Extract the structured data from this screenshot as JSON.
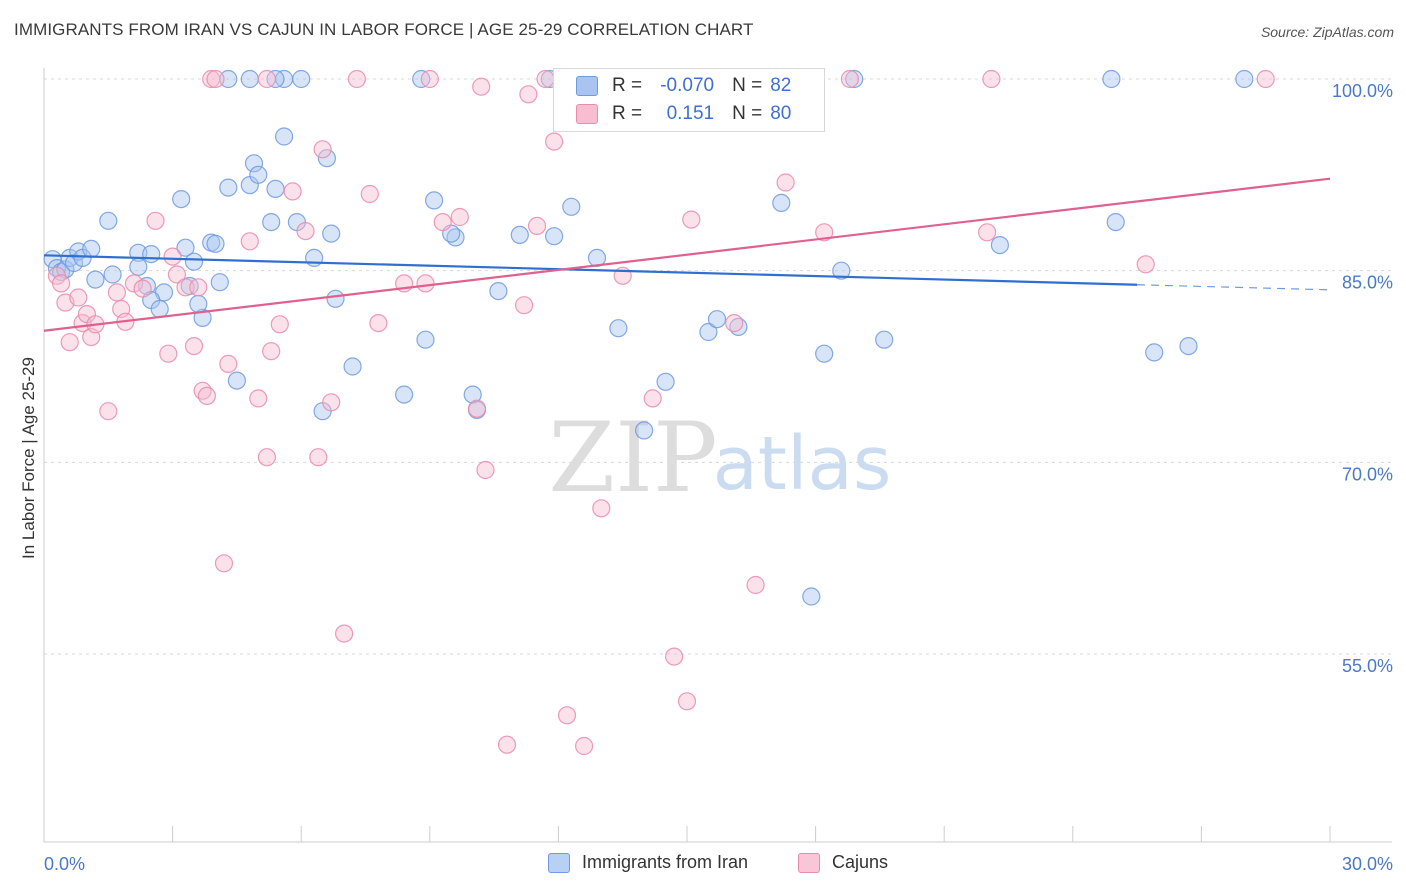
{
  "title": "IMMIGRANTS FROM IRAN VS CAJUN IN LABOR FORCE | AGE 25-29 CORRELATION CHART",
  "source": "Source: ZipAtlas.com",
  "watermark": {
    "zip": "ZIP",
    "atlas": "atlas"
  },
  "legend": {
    "r_label": "R =",
    "n_label": "N =",
    "rows": [
      {
        "r": "-0.070",
        "n": "82",
        "color": "#a9c5ef",
        "border": "#6e9ae0"
      },
      {
        "r": "0.151",
        "n": "80",
        "color": "#f7bdd0",
        "border": "#e98bab"
      }
    ]
  },
  "bottom_legend": [
    {
      "label": "Immigrants from Iran",
      "color": "#b7d0f3",
      "border": "#6e9ae0"
    },
    {
      "label": "Cajuns",
      "color": "#f8c6d6",
      "border": "#e98bab"
    }
  ],
  "chart_data": {
    "type": "scatter",
    "title": "IMMIGRANTS FROM IRAN VS CAJUN IN LABOR FORCE | AGE 25-29 CORRELATION CHART",
    "xlabel": "",
    "ylabel": "In Labor Force | Age 25-29",
    "xlim": [
      0,
      30
    ],
    "ylim": [
      41,
      102
    ],
    "x_ticks": [
      "0.0%",
      "30.0%"
    ],
    "y_ticks": [
      {
        "value": 100,
        "label": "100.0%"
      },
      {
        "value": 85,
        "label": "85.0%"
      },
      {
        "value": 70,
        "label": "70.0%"
      },
      {
        "value": 55,
        "label": "55.0%"
      }
    ],
    "grid": "horizontal dashed",
    "series": [
      {
        "name": "Immigrants from Iran",
        "color": "#6e9ae0",
        "fill": "#a9c5ef",
        "trend": {
          "x0": 0,
          "y0": 86.2,
          "x1": 25.5,
          "y1": 83.9,
          "dashed_to_x": 30,
          "dashed_to_y": 83.5,
          "color": "#2f6fd0"
        },
        "points": [
          [
            0.2,
            85.9
          ],
          [
            0.3,
            85.2
          ],
          [
            0.4,
            84.9
          ],
          [
            0.5,
            85.1
          ],
          [
            0.6,
            86.0
          ],
          [
            0.7,
            85.6
          ],
          [
            0.8,
            86.5
          ],
          [
            0.9,
            86.0
          ],
          [
            1.1,
            86.7
          ],
          [
            1.2,
            84.3
          ],
          [
            1.5,
            88.9
          ],
          [
            1.6,
            84.7
          ],
          [
            2.2,
            86.4
          ],
          [
            2.2,
            85.3
          ],
          [
            2.4,
            83.8
          ],
          [
            2.5,
            86.3
          ],
          [
            2.8,
            83.3
          ],
          [
            2.5,
            82.7
          ],
          [
            3.2,
            90.6
          ],
          [
            2.7,
            82.0
          ],
          [
            3.3,
            86.8
          ],
          [
            3.5,
            85.7
          ],
          [
            3.7,
            81.3
          ],
          [
            3.6,
            82.4
          ],
          [
            3.9,
            87.2
          ],
          [
            3.4,
            83.8
          ],
          [
            4.0,
            87.1
          ],
          [
            4.1,
            84.1
          ],
          [
            4.3,
            91.5
          ],
          [
            4.5,
            76.4
          ],
          [
            4.8,
            91.7
          ],
          [
            4.9,
            93.4
          ],
          [
            5.0,
            92.5
          ],
          [
            5.3,
            88.8
          ],
          [
            5.4,
            91.4
          ],
          [
            5.6,
            95.5
          ],
          [
            5.9,
            88.8
          ],
          [
            6.3,
            86.0
          ],
          [
            6.5,
            74.0
          ],
          [
            6.6,
            93.8
          ],
          [
            6.7,
            87.9
          ],
          [
            6.8,
            82.8
          ],
          [
            7.2,
            77.5
          ],
          [
            8.4,
            75.3
          ],
          [
            8.9,
            79.6
          ],
          [
            9.1,
            90.5
          ],
          [
            9.6,
            87.6
          ],
          [
            9.5,
            87.9
          ],
          [
            10.0,
            75.3
          ],
          [
            10.1,
            74.1
          ],
          [
            10.6,
            83.4
          ],
          [
            11.1,
            87.8
          ],
          [
            11.9,
            87.7
          ],
          [
            12.3,
            90.0
          ],
          [
            12.9,
            86.0
          ],
          [
            13.4,
            80.5
          ],
          [
            14.0,
            72.5
          ],
          [
            14.5,
            76.3
          ],
          [
            15.5,
            80.2
          ],
          [
            15.7,
            81.2
          ],
          [
            16.2,
            80.6
          ],
          [
            17.2,
            90.3
          ],
          [
            17.9,
            59.5
          ],
          [
            18.2,
            78.5
          ],
          [
            18.6,
            85.0
          ],
          [
            19.6,
            79.6
          ],
          [
            22.3,
            87.0
          ],
          [
            25.0,
            88.8
          ],
          [
            25.9,
            78.6
          ],
          [
            26.7,
            79.1
          ],
          [
            4.3,
            100.0
          ],
          [
            4.8,
            100.0
          ],
          [
            5.6,
            100.0
          ],
          [
            6.0,
            100.0
          ],
          [
            5.4,
            100.0
          ],
          [
            8.8,
            100.0
          ],
          [
            11.8,
            100.0
          ],
          [
            14.5,
            100.0
          ],
          [
            17.8,
            100.0
          ],
          [
            18.9,
            100.0
          ],
          [
            24.9,
            100.0
          ],
          [
            28.0,
            100.0
          ]
        ]
      },
      {
        "name": "Cajuns",
        "color": "#e98bab",
        "fill": "#f7bdd0",
        "trend": {
          "x0": 0,
          "y0": 80.3,
          "x1": 30,
          "y1": 92.2,
          "color": "#e0608e"
        },
        "points": [
          [
            0.3,
            84.6
          ],
          [
            0.4,
            84.0
          ],
          [
            0.5,
            82.5
          ],
          [
            0.6,
            79.4
          ],
          [
            0.8,
            82.9
          ],
          [
            0.9,
            80.9
          ],
          [
            1.0,
            81.6
          ],
          [
            1.1,
            79.8
          ],
          [
            1.2,
            80.8
          ],
          [
            1.5,
            74.0
          ],
          [
            1.7,
            83.3
          ],
          [
            1.8,
            82.0
          ],
          [
            1.9,
            81.0
          ],
          [
            2.1,
            84.0
          ],
          [
            2.3,
            83.6
          ],
          [
            2.6,
            88.9
          ],
          [
            2.9,
            78.5
          ],
          [
            3.0,
            86.1
          ],
          [
            3.1,
            84.7
          ],
          [
            3.3,
            83.7
          ],
          [
            3.5,
            79.1
          ],
          [
            3.6,
            83.7
          ],
          [
            3.7,
            75.6
          ],
          [
            3.8,
            75.2
          ],
          [
            4.2,
            62.1
          ],
          [
            4.3,
            77.7
          ],
          [
            4.8,
            87.3
          ],
          [
            5.0,
            75.0
          ],
          [
            5.2,
            70.4
          ],
          [
            5.3,
            78.7
          ],
          [
            5.5,
            80.8
          ],
          [
            5.8,
            91.2
          ],
          [
            6.1,
            88.1
          ],
          [
            6.4,
            70.4
          ],
          [
            6.5,
            94.5
          ],
          [
            6.7,
            74.7
          ],
          [
            7.0,
            56.6
          ],
          [
            7.6,
            91.0
          ],
          [
            7.8,
            80.9
          ],
          [
            8.4,
            84.0
          ],
          [
            8.9,
            84.0
          ],
          [
            9.3,
            88.8
          ],
          [
            9.7,
            89.2
          ],
          [
            10.1,
            74.2
          ],
          [
            10.3,
            69.4
          ],
          [
            10.8,
            47.9
          ],
          [
            11.2,
            82.3
          ],
          [
            11.5,
            88.5
          ],
          [
            11.9,
            95.1
          ],
          [
            12.2,
            50.2
          ],
          [
            12.6,
            47.8
          ],
          [
            13.0,
            66.4
          ],
          [
            13.5,
            84.6
          ],
          [
            14.2,
            75.0
          ],
          [
            14.7,
            54.8
          ],
          [
            15.0,
            51.3
          ],
          [
            15.1,
            89.0
          ],
          [
            16.1,
            80.9
          ],
          [
            16.6,
            60.4
          ],
          [
            17.3,
            91.9
          ],
          [
            18.2,
            88.0
          ],
          [
            22.0,
            88.0
          ],
          [
            25.7,
            85.5
          ],
          [
            3.9,
            100.0
          ],
          [
            4.0,
            100.0
          ],
          [
            5.2,
            100.0
          ],
          [
            7.3,
            100.0
          ],
          [
            9.0,
            100.0
          ],
          [
            10.2,
            99.4
          ],
          [
            11.3,
            98.8
          ],
          [
            11.7,
            100.0
          ],
          [
            12.2,
            100.0
          ],
          [
            13.0,
            100.0
          ],
          [
            13.8,
            100.0
          ],
          [
            14.6,
            100.0
          ],
          [
            15.4,
            100.0
          ],
          [
            16.6,
            100.0
          ],
          [
            18.8,
            100.0
          ],
          [
            22.1,
            100.0
          ],
          [
            28.5,
            100.0
          ]
        ]
      }
    ]
  }
}
